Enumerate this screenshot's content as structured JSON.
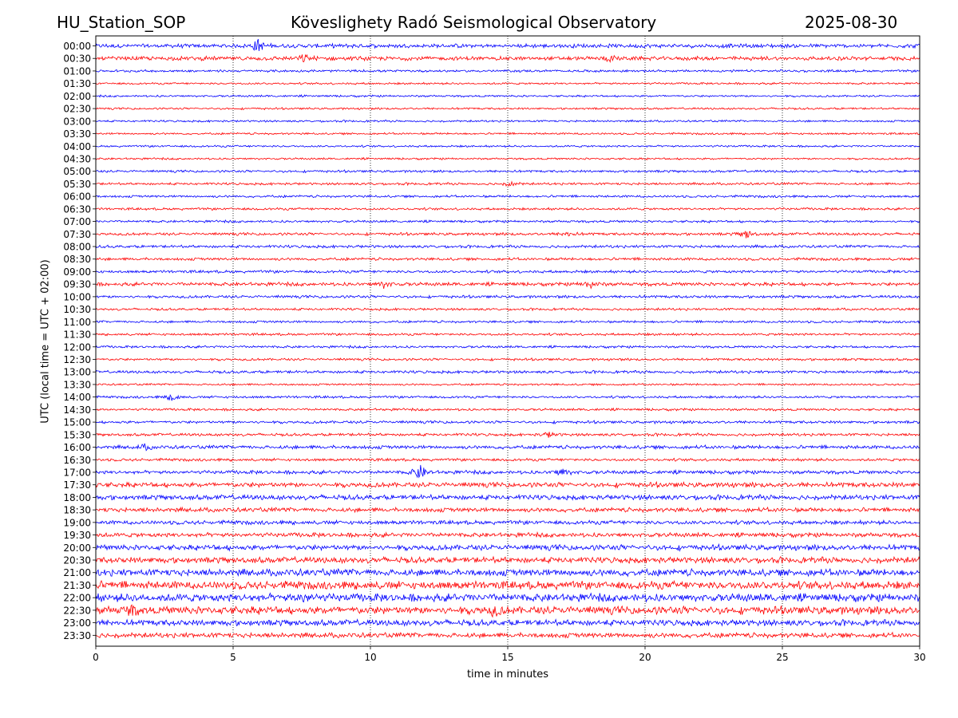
{
  "header": {
    "station": "HU_Station_SOP",
    "title": "Köveslighety Radó Seismological Observatory",
    "date": "2025-08-30"
  },
  "chart_data": {
    "type": "line",
    "xlabel": "time in minutes",
    "ylabel": "UTC (local time = UTC + 02:00)",
    "xlim": [
      0,
      30
    ],
    "x_ticks": [
      0,
      5,
      10,
      15,
      20,
      25,
      30
    ],
    "grid": "vertical dotted lines at x ticks",
    "trace_colors": [
      "#0000ff",
      "#ff0000"
    ],
    "rows": [
      {
        "label": "00:00",
        "color": "#0000ff",
        "amplitude": 2,
        "events": [
          {
            "t": 5.9,
            "a": 8
          }
        ]
      },
      {
        "label": "00:30",
        "color": "#ff0000",
        "amplitude": 2,
        "events": [
          {
            "t": 7.6,
            "a": 4
          },
          {
            "t": 18.7,
            "a": 3
          }
        ]
      },
      {
        "label": "01:00",
        "color": "#0000ff",
        "amplitude": 1.2,
        "events": []
      },
      {
        "label": "01:30",
        "color": "#ff0000",
        "amplitude": 1,
        "events": []
      },
      {
        "label": "02:00",
        "color": "#0000ff",
        "amplitude": 1,
        "events": []
      },
      {
        "label": "02:30",
        "color": "#ff0000",
        "amplitude": 1,
        "events": []
      },
      {
        "label": "03:00",
        "color": "#0000ff",
        "amplitude": 1,
        "events": []
      },
      {
        "label": "03:30",
        "color": "#ff0000",
        "amplitude": 1,
        "events": []
      },
      {
        "label": "04:00",
        "color": "#0000ff",
        "amplitude": 1,
        "events": []
      },
      {
        "label": "04:30",
        "color": "#ff0000",
        "amplitude": 1,
        "events": []
      },
      {
        "label": "05:00",
        "color": "#0000ff",
        "amplitude": 1.2,
        "events": []
      },
      {
        "label": "05:30",
        "color": "#ff0000",
        "amplitude": 1.2,
        "events": [
          {
            "t": 15.1,
            "a": 3
          }
        ]
      },
      {
        "label": "06:00",
        "color": "#0000ff",
        "amplitude": 1.2,
        "events": []
      },
      {
        "label": "06:30",
        "color": "#ff0000",
        "amplitude": 1.2,
        "events": []
      },
      {
        "label": "07:00",
        "color": "#0000ff",
        "amplitude": 1.2,
        "events": []
      },
      {
        "label": "07:30",
        "color": "#ff0000",
        "amplitude": 1.4,
        "events": [
          {
            "t": 23.7,
            "a": 5
          },
          {
            "t": 17.2,
            "a": 3
          }
        ]
      },
      {
        "label": "08:00",
        "color": "#0000ff",
        "amplitude": 1.4,
        "events": []
      },
      {
        "label": "08:30",
        "color": "#ff0000",
        "amplitude": 1.4,
        "events": []
      },
      {
        "label": "09:00",
        "color": "#0000ff",
        "amplitude": 1.4,
        "events": []
      },
      {
        "label": "09:30",
        "color": "#ff0000",
        "amplitude": 1.8,
        "events": [
          {
            "t": 10.5,
            "a": 4
          },
          {
            "t": 18.0,
            "a": 5
          }
        ]
      },
      {
        "label": "10:00",
        "color": "#0000ff",
        "amplitude": 1.4,
        "events": []
      },
      {
        "label": "10:30",
        "color": "#ff0000",
        "amplitude": 1.2,
        "events": []
      },
      {
        "label": "11:00",
        "color": "#0000ff",
        "amplitude": 1.2,
        "events": []
      },
      {
        "label": "11:30",
        "color": "#ff0000",
        "amplitude": 1.2,
        "events": []
      },
      {
        "label": "12:00",
        "color": "#0000ff",
        "amplitude": 1.2,
        "events": []
      },
      {
        "label": "12:30",
        "color": "#ff0000",
        "amplitude": 1.2,
        "events": []
      },
      {
        "label": "13:00",
        "color": "#0000ff",
        "amplitude": 1.4,
        "events": []
      },
      {
        "label": "13:30",
        "color": "#ff0000",
        "amplitude": 1,
        "events": []
      },
      {
        "label": "14:00",
        "color": "#0000ff",
        "amplitude": 1.2,
        "events": [
          {
            "t": 2.8,
            "a": 5
          }
        ]
      },
      {
        "label": "14:30",
        "color": "#ff0000",
        "amplitude": 1.2,
        "events": []
      },
      {
        "label": "15:00",
        "color": "#0000ff",
        "amplitude": 1.4,
        "events": []
      },
      {
        "label": "15:30",
        "color": "#ff0000",
        "amplitude": 1.4,
        "events": [
          {
            "t": 16.5,
            "a": 3
          }
        ]
      },
      {
        "label": "16:00",
        "color": "#0000ff",
        "amplitude": 1.8,
        "events": [
          {
            "t": 1.8,
            "a": 3
          }
        ]
      },
      {
        "label": "16:30",
        "color": "#ff0000",
        "amplitude": 1.4,
        "events": []
      },
      {
        "label": "17:00",
        "color": "#0000ff",
        "amplitude": 1.8,
        "events": [
          {
            "t": 11.8,
            "a": 9
          },
          {
            "t": 17.0,
            "a": 5
          }
        ]
      },
      {
        "label": "17:30",
        "color": "#ff0000",
        "amplitude": 2.5,
        "events": []
      },
      {
        "label": "18:00",
        "color": "#0000ff",
        "amplitude": 2.5,
        "events": []
      },
      {
        "label": "18:30",
        "color": "#ff0000",
        "amplitude": 2.2,
        "events": []
      },
      {
        "label": "19:00",
        "color": "#0000ff",
        "amplitude": 2,
        "events": []
      },
      {
        "label": "19:30",
        "color": "#ff0000",
        "amplitude": 2.2,
        "events": []
      },
      {
        "label": "20:00",
        "color": "#0000ff",
        "amplitude": 2.8,
        "events": []
      },
      {
        "label": "20:30",
        "color": "#ff0000",
        "amplitude": 3,
        "events": []
      },
      {
        "label": "21:00",
        "color": "#0000ff",
        "amplitude": 3.5,
        "events": []
      },
      {
        "label": "21:30",
        "color": "#ff0000",
        "amplitude": 4,
        "events": []
      },
      {
        "label": "22:00",
        "color": "#0000ff",
        "amplitude": 4,
        "events": [
          {
            "t": 7.6,
            "a": 5
          }
        ]
      },
      {
        "label": "22:30",
        "color": "#ff0000",
        "amplitude": 4,
        "events": [
          {
            "t": 1.3,
            "a": 5
          },
          {
            "t": 14.5,
            "a": 5
          }
        ]
      },
      {
        "label": "23:00",
        "color": "#0000ff",
        "amplitude": 3,
        "events": []
      },
      {
        "label": "23:30",
        "color": "#ff0000",
        "amplitude": 2.5,
        "events": []
      }
    ]
  }
}
